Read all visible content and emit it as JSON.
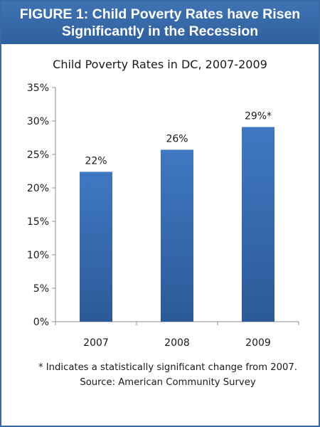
{
  "figure": {
    "banner_line1": "FIGURE 1: Child Poverty Rates have Risen",
    "banner_line2": "Significantly in the Recession",
    "footnote": "* Indicates a statistically significant change from 2007.  Source: American Community Survey",
    "banner_color": "#3568a8",
    "bar_color": "#3a6db0"
  },
  "chart_data": {
    "type": "bar",
    "title": "Child Poverty Rates in DC, 2007-2009",
    "xlabel": "",
    "ylabel": "",
    "categories": [
      "2007",
      "2008",
      "2009"
    ],
    "values": [
      22.4,
      25.7,
      29.1
    ],
    "data_labels": [
      "22%",
      "26%",
      "29%*"
    ],
    "ylim": [
      0,
      35
    ],
    "yticks": [
      0,
      5,
      10,
      15,
      20,
      25,
      30,
      35
    ],
    "ytick_labels": [
      "0%",
      "5%",
      "10%",
      "15%",
      "20%",
      "25%",
      "30%",
      "35%"
    ],
    "grid": false,
    "legend": "none"
  }
}
